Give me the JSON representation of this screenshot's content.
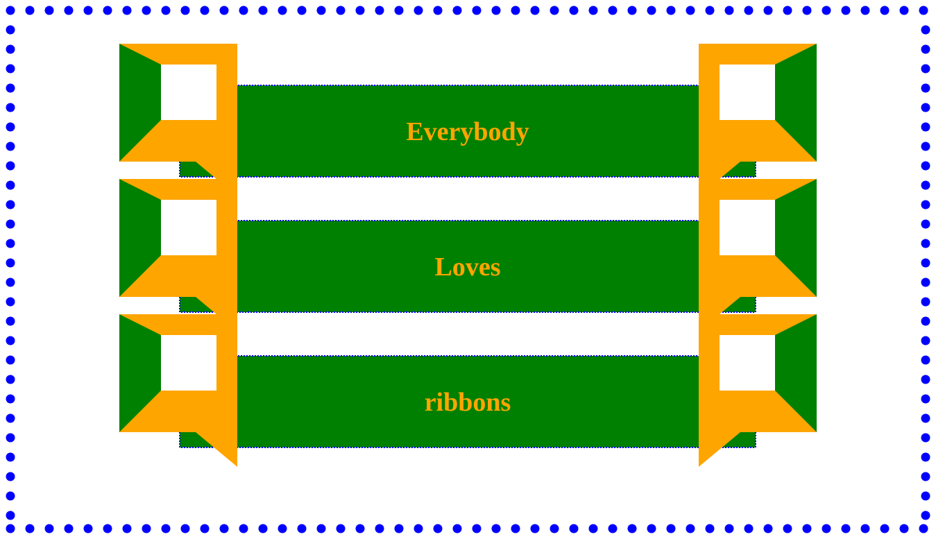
{
  "colors": {
    "page_background": "#ffffff",
    "frame_dots": "#0000ff",
    "ribbon_body": "#008000",
    "ribbon_fold": "#ffa500",
    "ribbon_text": "#ffa500",
    "ribbon_border": "#0000ff"
  },
  "frame": {
    "style": "dotted"
  },
  "ribbons": [
    {
      "label": "Everybody"
    },
    {
      "label": "Loves"
    },
    {
      "label": "ribbons"
    }
  ]
}
